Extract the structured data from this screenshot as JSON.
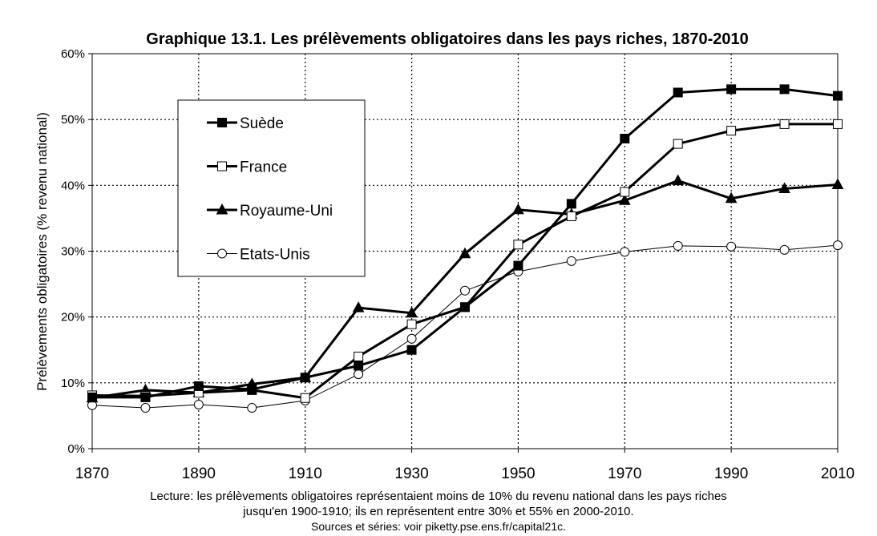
{
  "chart_data": {
    "type": "line",
    "title": "Graphique 13.1. Les prélèvements obligatoires dans les pays riches, 1870-2010",
    "xlabel": "",
    "ylabel": "Prélèvements obligatoires (% revenu national)",
    "xlim": [
      1870,
      2010
    ],
    "ylim": [
      0,
      60
    ],
    "x_ticks": [
      "1870",
      "1890",
      "1910",
      "1930",
      "1950",
      "1970",
      "1990",
      "2010"
    ],
    "y_ticks": [
      "0%",
      "10%",
      "20%",
      "30%",
      "40%",
      "50%",
      "60%"
    ],
    "grid": "dotted",
    "legend_position": "top-left",
    "x": [
      1870,
      1880,
      1890,
      1900,
      1910,
      1920,
      1930,
      1940,
      1950,
      1960,
      1970,
      1980,
      1990,
      2000,
      2010
    ],
    "series": [
      {
        "name": "Suède",
        "marker": "filled-square",
        "stroke_width": 3,
        "values": [
          7.8,
          7.8,
          9.5,
          9.0,
          10.8,
          12.6,
          15.0,
          21.5,
          27.8,
          37.2,
          47.1,
          54.1,
          54.6,
          54.6,
          53.6
        ]
      },
      {
        "name": "France",
        "marker": "open-square",
        "stroke_width": 3,
        "values": [
          8.1,
          8.0,
          8.5,
          8.9,
          7.7,
          14.0,
          18.9,
          21.5,
          31.0,
          35.3,
          39.0,
          46.3,
          48.3,
          49.3,
          49.3
        ]
      },
      {
        "name": "Royaume-Uni",
        "marker": "filled-triangle",
        "stroke_width": 3,
        "values": [
          7.7,
          8.9,
          8.5,
          9.8,
          10.8,
          21.4,
          20.6,
          29.6,
          36.3,
          35.6,
          37.7,
          40.7,
          38.0,
          39.5,
          40.1
        ]
      },
      {
        "name": "Etats-Unis",
        "marker": "open-circle",
        "stroke_width": 1,
        "values": [
          6.6,
          6.2,
          6.7,
          6.2,
          7.3,
          11.3,
          16.7,
          24.0,
          26.9,
          28.5,
          29.9,
          30.8,
          30.7,
          30.2,
          30.9
        ]
      }
    ]
  },
  "notes": {
    "line1": "Lecture: les prélèvements obligatoires représentaient moins de 10% du revenu national dans les pays riches",
    "line2": "jusqu'en 1900-1910; ils en représentent entre 30% et 55% en 2000-2010.",
    "line3": "Sources et séries: voir piketty.pse.ens.fr/capital21c."
  }
}
